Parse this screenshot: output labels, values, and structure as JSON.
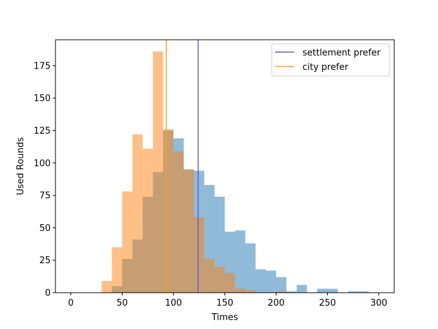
{
  "chart_data": {
    "type": "bar",
    "subtype": "overlapping-histogram",
    "xlabel": "Times",
    "ylabel": "Used Rounds",
    "xlim": [
      -15,
      315
    ],
    "ylim": [
      0,
      195
    ],
    "xticks": [
      0,
      50,
      100,
      150,
      200,
      250,
      300
    ],
    "yticks": [
      0,
      25,
      50,
      75,
      100,
      125,
      150,
      175
    ],
    "legend_position": "upper-right",
    "series": [
      {
        "name": "settlement prefer",
        "color": "#1f77b4",
        "opacity": 0.5,
        "bin_edges": [
          40,
          50,
          60,
          70,
          80,
          90,
          100,
          110,
          120,
          130,
          140,
          150,
          160,
          170,
          180,
          190,
          200,
          210,
          220,
          230,
          240,
          250,
          260,
          270,
          280,
          290
        ],
        "counts": [
          5,
          26,
          41,
          74,
          93,
          125,
          119,
          95,
          94,
          83,
          74,
          47,
          48,
          38,
          18,
          17,
          12,
          1,
          6,
          0,
          3,
          3,
          0,
          1,
          1
        ]
      },
      {
        "name": "city prefer",
        "color": "#ff7f0e",
        "opacity": 0.5,
        "bin_edges": [
          30,
          40,
          50,
          60,
          70,
          80,
          90,
          100,
          110,
          120,
          130,
          140,
          150,
          160,
          170,
          180,
          190,
          200,
          210
        ],
        "counts": [
          9,
          35,
          78,
          122,
          111,
          186,
          126,
          109,
          95,
          58,
          26,
          20,
          15,
          3,
          2,
          0,
          0,
          1
        ]
      }
    ],
    "vertical_lines": [
      {
        "label": "settlement prefer",
        "x": 124,
        "color": "#6a5acd"
      },
      {
        "label": "city prefer",
        "x": 93,
        "color": "#f5a623"
      }
    ]
  }
}
